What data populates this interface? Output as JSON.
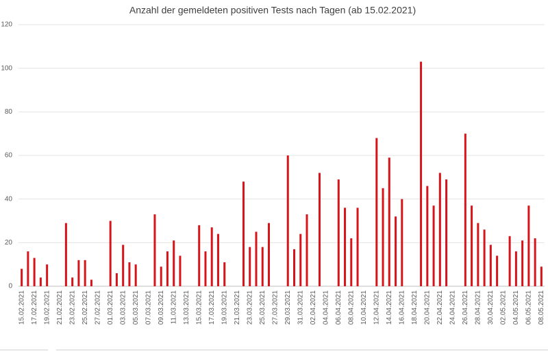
{
  "chart_data": {
    "type": "bar",
    "title": "Anzahl der gemeldeten positiven Tests nach Tagen (ab 15.02.2021)",
    "categories": [
      "15.02.2021",
      null,
      "17.02.2021",
      null,
      "19.02.2021",
      null,
      "21.02.2021",
      null,
      "23.02.2021",
      null,
      "25.02.2021",
      null,
      "27.02.2021",
      null,
      "01.03.2021",
      null,
      "03.03.2021",
      null,
      "05.03.2021",
      null,
      "07.03.2021",
      null,
      "09.03.2021",
      null,
      "11.03.2021",
      null,
      "13.03.2021",
      null,
      "15.03.2021",
      null,
      "17.03.2021",
      null,
      "19.03.2021",
      null,
      "21.03.2021",
      null,
      "23.03.2021",
      null,
      "25.03.2021",
      null,
      "27.03.2021",
      null,
      "29.03.2021",
      null,
      "31.03.2021",
      null,
      "02.04.2021",
      null,
      "04.04.2021",
      null,
      "06.04.2021",
      null,
      "08.04.2021",
      null,
      "10.04.2021",
      null,
      "12.04.2021",
      null,
      "14.04.2021",
      null,
      "16.04.2021",
      null,
      "18.04.2021",
      null,
      "20.04.2021",
      null,
      "22.04.2021",
      null,
      "24.04.2021",
      null,
      "26.04.2021",
      null,
      "28.04.2021",
      null,
      "30.04.2021",
      null,
      "02.05.2021",
      null,
      "04.05.2021",
      null,
      "06.05.2021",
      null,
      "08.05.2021"
    ],
    "values": [
      8,
      16,
      13,
      4,
      10,
      0,
      0,
      29,
      4,
      12,
      12,
      3,
      0,
      0,
      30,
      6,
      19,
      11,
      10,
      0,
      0,
      33,
      9,
      16,
      21,
      14,
      0,
      0,
      28,
      16,
      27,
      24,
      11,
      0,
      0,
      48,
      18,
      25,
      18,
      29,
      0,
      0,
      60,
      17,
      24,
      33,
      0,
      52,
      0,
      0,
      49,
      36,
      22,
      36,
      0,
      0,
      68,
      45,
      59,
      32,
      40,
      0,
      0,
      103,
      46,
      37,
      52,
      49,
      0,
      0,
      70,
      37,
      29,
      26,
      19,
      14,
      0,
      23,
      16,
      21,
      37,
      22,
      9
    ],
    "color": "#d7141a",
    "ylim": [
      0,
      120
    ],
    "yticks": [
      0,
      20,
      40,
      60,
      80,
      100,
      120
    ],
    "grid": true
  }
}
